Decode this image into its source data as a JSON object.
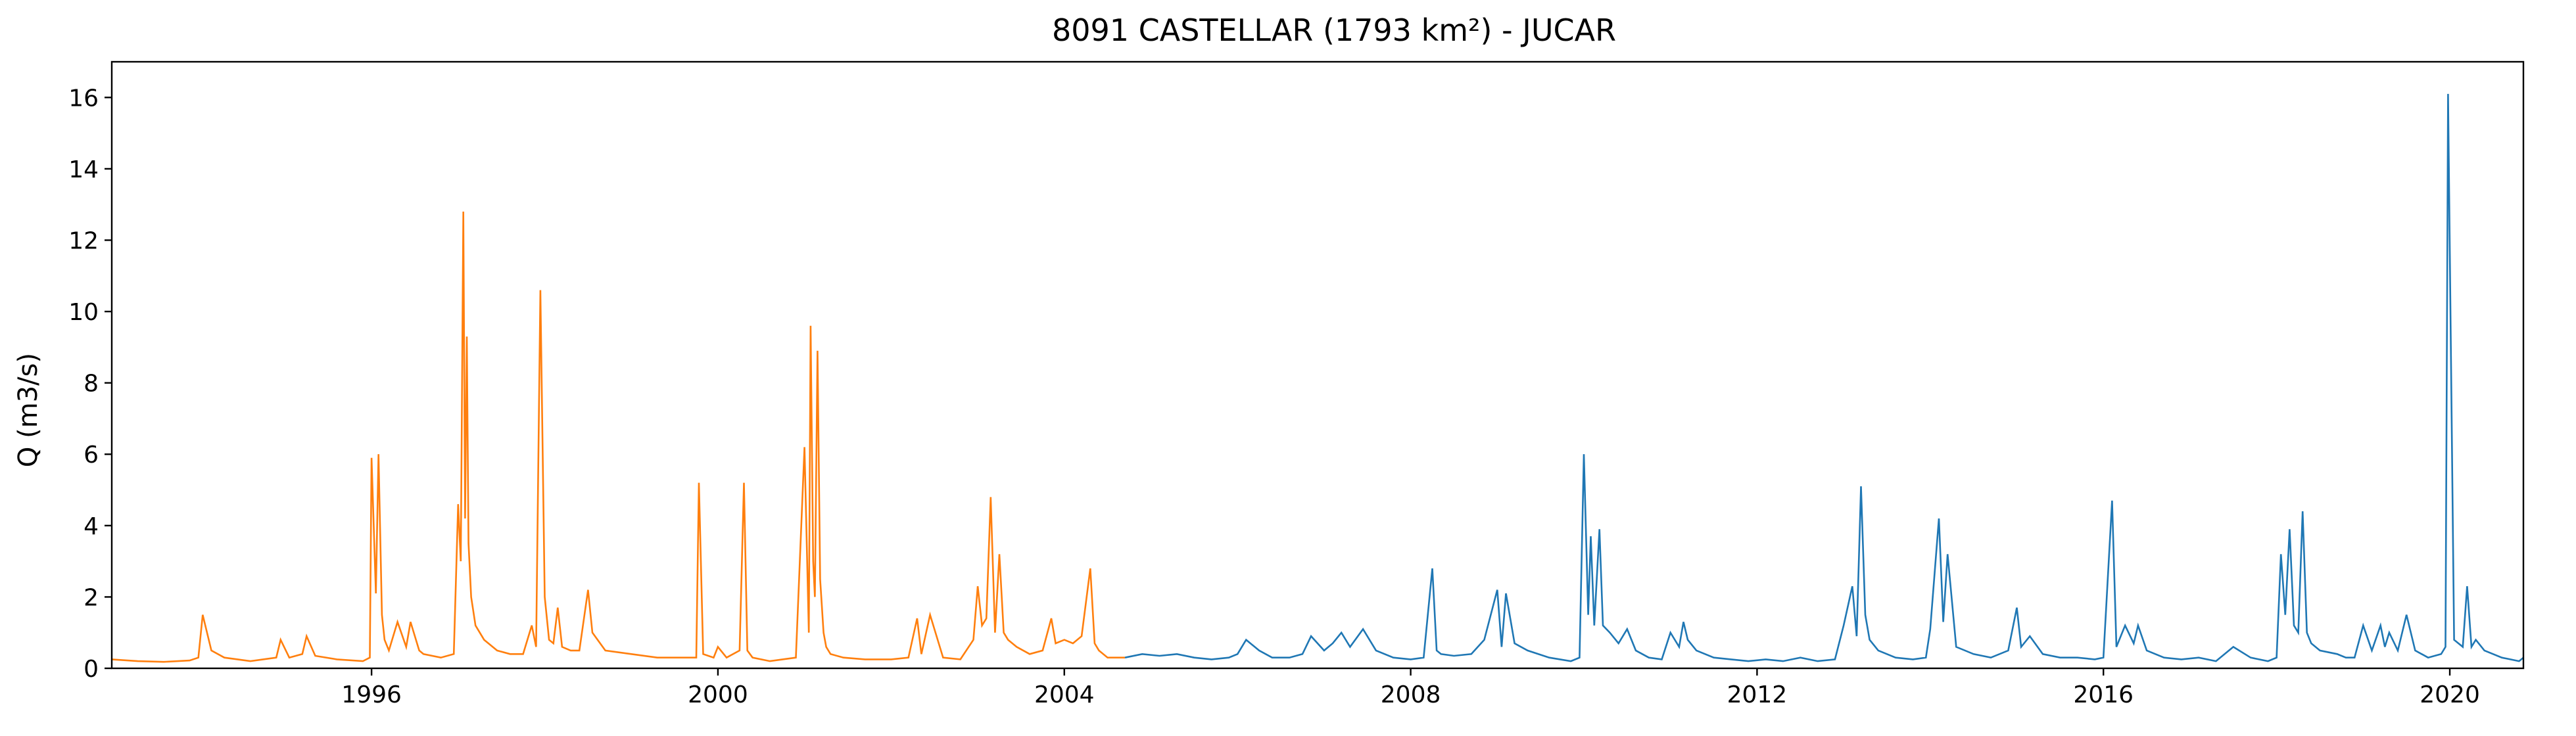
{
  "chart_data": {
    "type": "line",
    "title": "8091 CASTELLAR (1793 km²) - JUCAR",
    "xlabel": "",
    "ylabel": "Q (m3/s)",
    "x_axis": "time (years)",
    "xlim": [
      1993.0,
      2020.85
    ],
    "ylim": [
      0,
      17
    ],
    "x_ticks": [
      {
        "value": 1996,
        "label": "1996"
      },
      {
        "value": 2000,
        "label": "2000"
      },
      {
        "value": 2004,
        "label": "2004"
      },
      {
        "value": 2008,
        "label": "2008"
      },
      {
        "value": 2012,
        "label": "2012"
      },
      {
        "value": 2016,
        "label": "2016"
      },
      {
        "value": 2020,
        "label": "2020"
      }
    ],
    "y_ticks": [
      {
        "value": 0,
        "label": "0"
      },
      {
        "value": 2,
        "label": "2"
      },
      {
        "value": 4,
        "label": "4"
      },
      {
        "value": 6,
        "label": "6"
      },
      {
        "value": 8,
        "label": "8"
      },
      {
        "value": 10,
        "label": "10"
      },
      {
        "value": 12,
        "label": "12"
      },
      {
        "value": 14,
        "label": "14"
      },
      {
        "value": 16,
        "label": "16"
      }
    ],
    "grid": false,
    "legend": "none",
    "series": [
      {
        "color": "#ff7f0e",
        "x": [
          1993.0,
          1993.3,
          1993.6,
          1993.9,
          1994.0,
          1994.05,
          1994.15,
          1994.3,
          1994.6,
          1994.9,
          1994.95,
          1995.05,
          1995.2,
          1995.25,
          1995.35,
          1995.6,
          1995.9,
          1995.98,
          1996.0,
          1996.05,
          1996.08,
          1996.12,
          1996.15,
          1996.2,
          1996.3,
          1996.4,
          1996.45,
          1996.55,
          1996.6,
          1996.8,
          1996.95,
          1997.0,
          1997.03,
          1997.06,
          1997.08,
          1997.1,
          1997.12,
          1997.15,
          1997.2,
          1997.3,
          1997.45,
          1997.6,
          1997.75,
          1997.85,
          1997.9,
          1997.95,
          1998.0,
          1998.05,
          1998.1,
          1998.15,
          1998.2,
          1998.3,
          1998.4,
          1998.5,
          1998.55,
          1998.7,
          1999.0,
          1999.3,
          1999.6,
          1999.75,
          1999.78,
          1999.83,
          1999.95,
          2000.0,
          2000.1,
          2000.25,
          2000.3,
          2000.34,
          2000.4,
          2000.6,
          2000.9,
          2001.0,
          2001.05,
          2001.07,
          2001.1,
          2001.12,
          2001.15,
          2001.18,
          2001.22,
          2001.25,
          2001.3,
          2001.45,
          2001.7,
          2002.0,
          2002.2,
          2002.3,
          2002.35,
          2002.45,
          2002.6,
          2002.8,
          2002.95,
          2003.0,
          2003.05,
          2003.1,
          2003.15,
          2003.2,
          2003.25,
          2003.3,
          2003.35,
          2003.45,
          2003.6,
          2003.75,
          2003.85,
          2003.9,
          2004.0,
          2004.1,
          2004.2,
          2004.3,
          2004.35,
          2004.4,
          2004.5,
          2004.7
        ],
        "values": [
          0.25,
          0.2,
          0.18,
          0.22,
          0.3,
          1.5,
          0.5,
          0.3,
          0.2,
          0.3,
          0.8,
          0.3,
          0.4,
          0.9,
          0.35,
          0.25,
          0.2,
          0.3,
          5.9,
          2.1,
          6.0,
          1.5,
          0.8,
          0.5,
          1.3,
          0.6,
          1.3,
          0.5,
          0.4,
          0.3,
          0.4,
          4.6,
          3.0,
          12.8,
          4.2,
          9.3,
          3.5,
          2.0,
          1.2,
          0.8,
          0.5,
          0.4,
          0.4,
          1.2,
          0.6,
          10.6,
          2.0,
          0.8,
          0.7,
          1.7,
          0.6,
          0.5,
          0.5,
          2.2,
          1.0,
          0.5,
          0.4,
          0.3,
          0.3,
          0.3,
          5.2,
          0.4,
          0.3,
          0.6,
          0.3,
          0.5,
          5.2,
          0.5,
          0.3,
          0.2,
          0.3,
          6.2,
          1.0,
          9.6,
          3.0,
          2.0,
          8.9,
          2.5,
          1.0,
          0.6,
          0.4,
          0.3,
          0.25,
          0.25,
          0.3,
          1.4,
          0.4,
          1.5,
          0.3,
          0.25,
          0.8,
          2.3,
          1.2,
          1.4,
          4.8,
          1.0,
          3.2,
          1.0,
          0.8,
          0.6,
          0.4,
          0.5,
          1.4,
          0.7,
          0.8,
          0.7,
          0.9,
          2.8,
          0.7,
          0.5,
          0.3,
          0.3
        ]
      },
      {
        "color": "#1f77b4",
        "x": [
          2004.7,
          2004.9,
          2005.1,
          2005.3,
          2005.5,
          2005.7,
          2005.9,
          2006.0,
          2006.1,
          2006.25,
          2006.4,
          2006.6,
          2006.75,
          2006.85,
          2007.0,
          2007.1,
          2007.2,
          2007.3,
          2007.45,
          2007.6,
          2007.8,
          2008.0,
          2008.15,
          2008.25,
          2008.3,
          2008.35,
          2008.5,
          2008.7,
          2008.85,
          2009.0,
          2009.05,
          2009.1,
          2009.2,
          2009.35,
          2009.6,
          2009.85,
          2009.95,
          2010.0,
          2010.05,
          2010.08,
          2010.12,
          2010.18,
          2010.22,
          2010.3,
          2010.4,
          2010.5,
          2010.6,
          2010.75,
          2010.9,
          2011.0,
          2011.1,
          2011.15,
          2011.2,
          2011.3,
          2011.5,
          2011.7,
          2011.9,
          2012.1,
          2012.3,
          2012.5,
          2012.7,
          2012.9,
          2013.0,
          2013.1,
          2013.15,
          2013.2,
          2013.25,
          2013.3,
          2013.4,
          2013.6,
          2013.8,
          2013.95,
          2014.0,
          2014.1,
          2014.15,
          2014.2,
          2014.3,
          2014.5,
          2014.7,
          2014.9,
          2015.0,
          2015.05,
          2015.15,
          2015.3,
          2015.5,
          2015.7,
          2015.9,
          2016.0,
          2016.1,
          2016.15,
          2016.25,
          2016.35,
          2016.4,
          2016.5,
          2016.7,
          2016.9,
          2017.1,
          2017.3,
          2017.5,
          2017.7,
          2017.9,
          2018.0,
          2018.05,
          2018.1,
          2018.15,
          2018.2,
          2018.25,
          2018.3,
          2018.35,
          2018.4,
          2018.5,
          2018.7,
          2018.8,
          2018.9,
          2019.0,
          2019.1,
          2019.2,
          2019.25,
          2019.3,
          2019.4,
          2019.5,
          2019.6,
          2019.75,
          2019.9,
          2019.95,
          2019.98,
          2020.05,
          2020.15,
          2020.2,
          2020.25,
          2020.3,
          2020.4,
          2020.5,
          2020.6,
          2020.7,
          2020.8,
          2020.85
        ],
        "values": [
          0.3,
          0.4,
          0.35,
          0.4,
          0.3,
          0.25,
          0.3,
          0.4,
          0.8,
          0.5,
          0.3,
          0.3,
          0.4,
          0.9,
          0.5,
          0.7,
          1.0,
          0.6,
          1.1,
          0.5,
          0.3,
          0.25,
          0.3,
          2.8,
          0.5,
          0.4,
          0.35,
          0.4,
          0.8,
          2.2,
          0.6,
          2.1,
          0.7,
          0.5,
          0.3,
          0.2,
          0.3,
          6.0,
          1.5,
          3.7,
          1.2,
          3.9,
          1.2,
          1.0,
          0.7,
          1.1,
          0.5,
          0.3,
          0.25,
          1.0,
          0.6,
          1.3,
          0.8,
          0.5,
          0.3,
          0.25,
          0.2,
          0.25,
          0.2,
          0.3,
          0.2,
          0.25,
          1.2,
          2.3,
          0.9,
          5.1,
          1.5,
          0.8,
          0.5,
          0.3,
          0.25,
          0.3,
          1.1,
          4.2,
          1.3,
          3.2,
          0.6,
          0.4,
          0.3,
          0.5,
          1.7,
          0.6,
          0.9,
          0.4,
          0.3,
          0.3,
          0.25,
          0.3,
          4.7,
          0.6,
          1.2,
          0.7,
          1.2,
          0.5,
          0.3,
          0.25,
          0.3,
          0.2,
          0.6,
          0.3,
          0.2,
          0.3,
          3.2,
          1.5,
          3.9,
          1.2,
          1.0,
          4.4,
          1.0,
          0.7,
          0.5,
          0.4,
          0.3,
          0.3,
          1.2,
          0.5,
          1.2,
          0.6,
          1.0,
          0.5,
          1.5,
          0.5,
          0.3,
          0.4,
          0.6,
          16.1,
          0.8,
          0.6,
          2.3,
          0.6,
          0.8,
          0.5,
          0.4,
          0.3,
          0.25,
          0.2,
          0.3
        ]
      }
    ]
  }
}
